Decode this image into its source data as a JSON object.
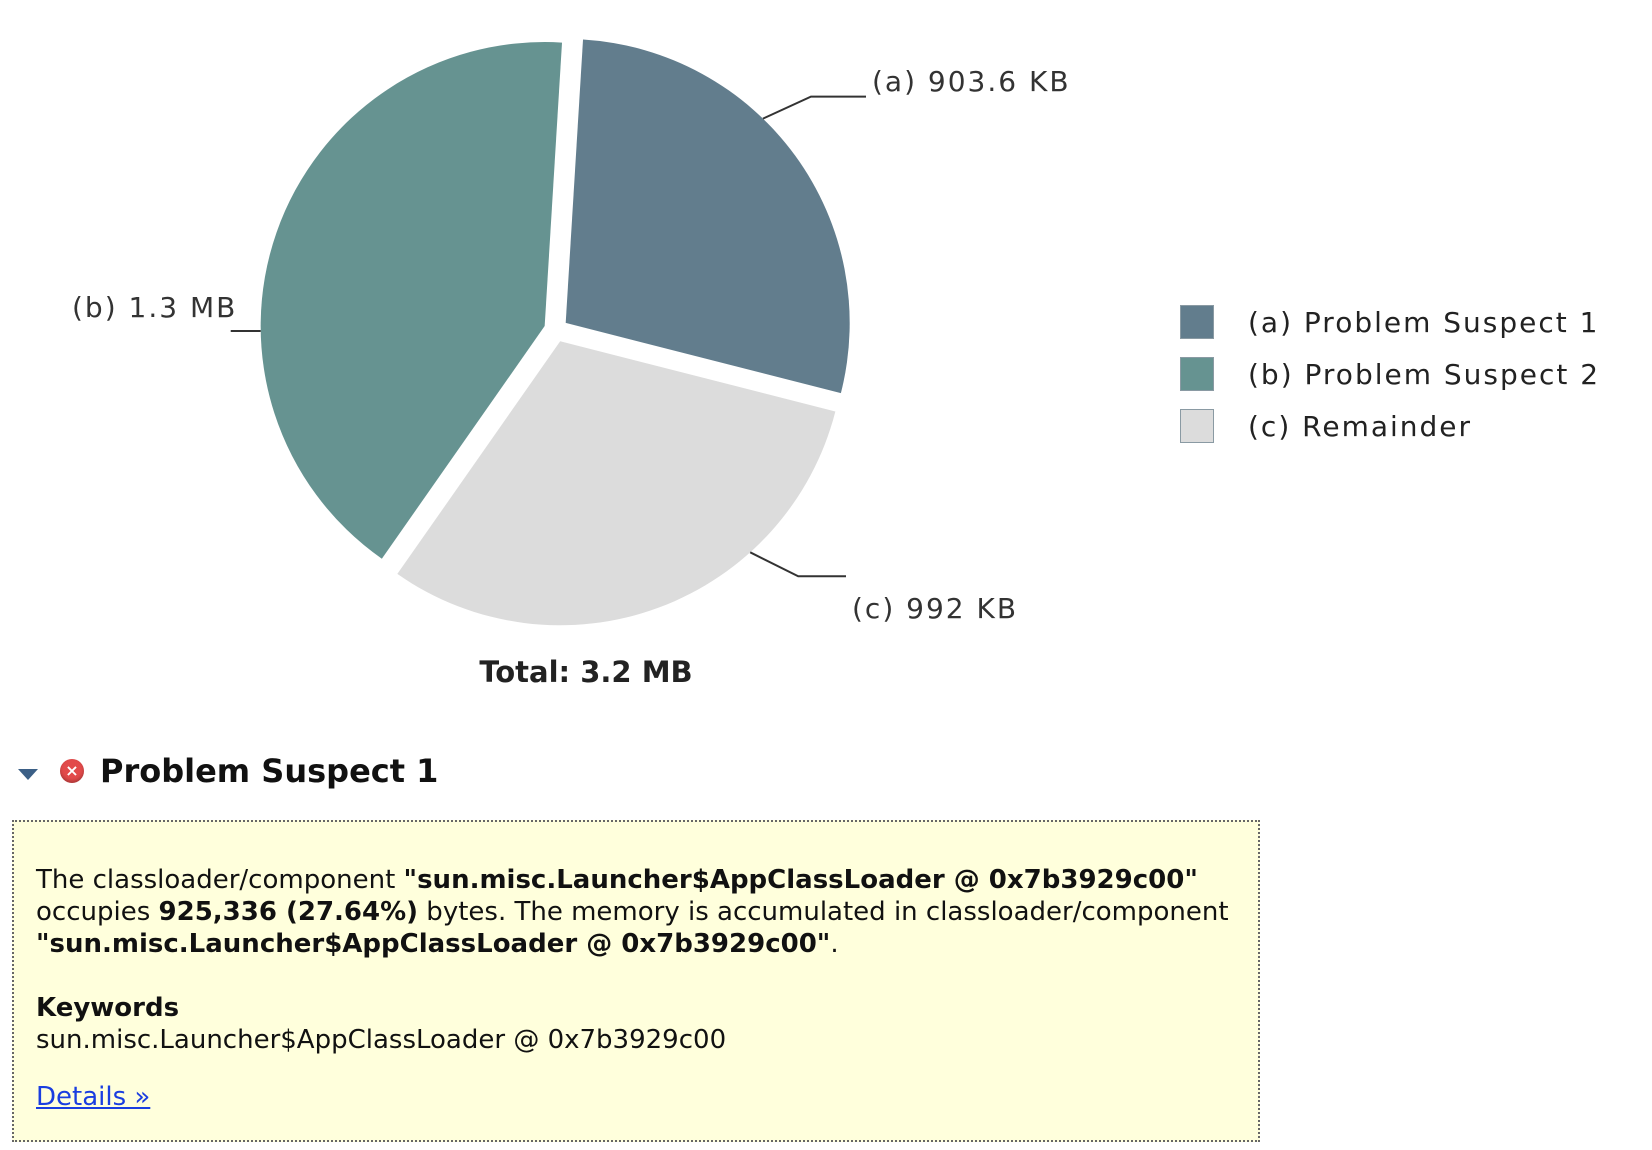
{
  "chart_data": {
    "type": "pie",
    "total_label": "Total: 3.2 MB",
    "slices": [
      {
        "id": "a",
        "name": "Problem Suspect 1",
        "value_kb": 903.6,
        "label": "(a)  903.6 KB",
        "legend": "(a)  Problem Suspect 1",
        "color": "#627d8d"
      },
      {
        "id": "b",
        "name": "Problem Suspect 2",
        "value_kb": 1331.2,
        "label": "(b)  1.3 MB",
        "legend": "(b)  Problem Suspect 2",
        "color": "#669391"
      },
      {
        "id": "c",
        "name": "Remainder",
        "value_kb": 992,
        "label": "(c)  992 KB",
        "legend": "(c)  Remainder",
        "color": "#dcdcdc"
      }
    ],
    "legend_placement": "right"
  },
  "suspect": {
    "title": "Problem Suspect 1",
    "desc": {
      "t1": "The classloader/component ",
      "b1": "\"sun.misc.Launcher$AppClassLoader @ 0x7b3929c00\"",
      "t2": " occupies ",
      "b2": "925,336 (27.64%)",
      "t3": " bytes. The memory is accumulated in classloader/component ",
      "b3": "\"sun.misc.Launcher$AppClassLoader @ 0x7b3929c00\"",
      "t4": "."
    },
    "keywords_heading": "Keywords",
    "keywords_value": "sun.misc.Launcher$AppClassLoader @ 0x7b3929c00",
    "details_link": "Details »"
  }
}
